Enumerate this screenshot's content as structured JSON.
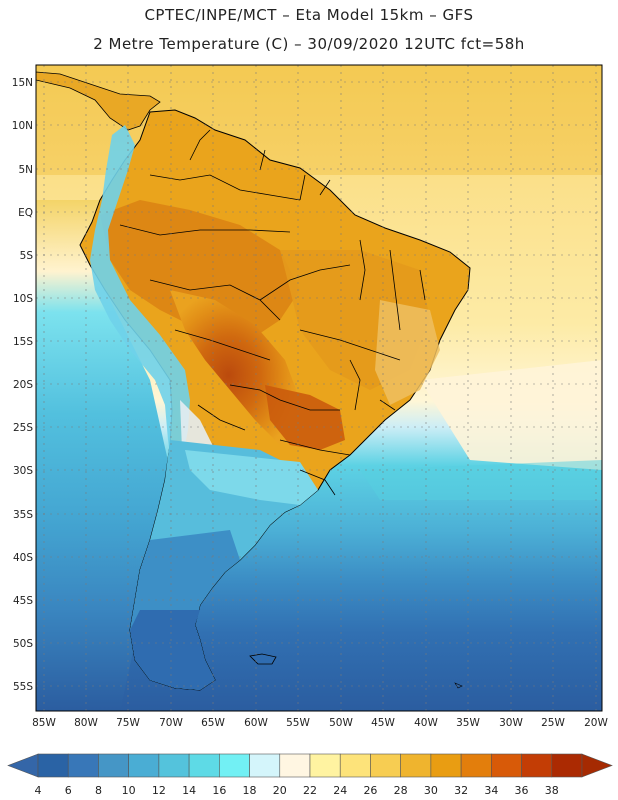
{
  "header": {
    "line1": "CPTEC/INPE/MCT –  Eta Model 15km – GFS",
    "line2": "2 Metre Temperature (C) – 30/09/2020 12UTC fct=58h"
  },
  "map": {
    "lat_labels": [
      "15N",
      "10N",
      "5N",
      "EQ",
      "5S",
      "10S",
      "15S",
      "20S",
      "25S",
      "30S",
      "35S",
      "40S",
      "45S",
      "50S",
      "55S"
    ],
    "lon_labels": [
      "85W",
      "80W",
      "75W",
      "70W",
      "65W",
      "60W",
      "55W",
      "50W",
      "45W",
      "40W",
      "35W",
      "30W",
      "25W",
      "20W"
    ]
  },
  "colorbar": {
    "levels": [
      "4",
      "6",
      "8",
      "10",
      "12",
      "14",
      "16",
      "18",
      "20",
      "22",
      "24",
      "26",
      "28",
      "30",
      "32",
      "34",
      "36",
      "38"
    ],
    "colors": [
      "#2a63a5",
      "#3877b8",
      "#4596c6",
      "#4aadd4",
      "#54c3dc",
      "#5edae6",
      "#72f0f4",
      "#d4f5fb",
      "#fff6e2",
      "#fff3a1",
      "#fde37a",
      "#f7cd52",
      "#efb42e",
      "#e99d12",
      "#e37e0c",
      "#d85a08",
      "#c33d05",
      "#ab2a02"
    ],
    "under_color": "#3466a8",
    "over_color": "#a52a02"
  },
  "colors": {
    "ocean_cold": "#2e5fa3",
    "ocean_mid": "#4fb6d8",
    "ocean_warm": "#fbe49a",
    "land_hot": "#d3700f",
    "land_very_hot": "#b4400b",
    "andes_cold": "#55b6dc",
    "coastline": "#000000",
    "grid": "#7a7a7a"
  }
}
